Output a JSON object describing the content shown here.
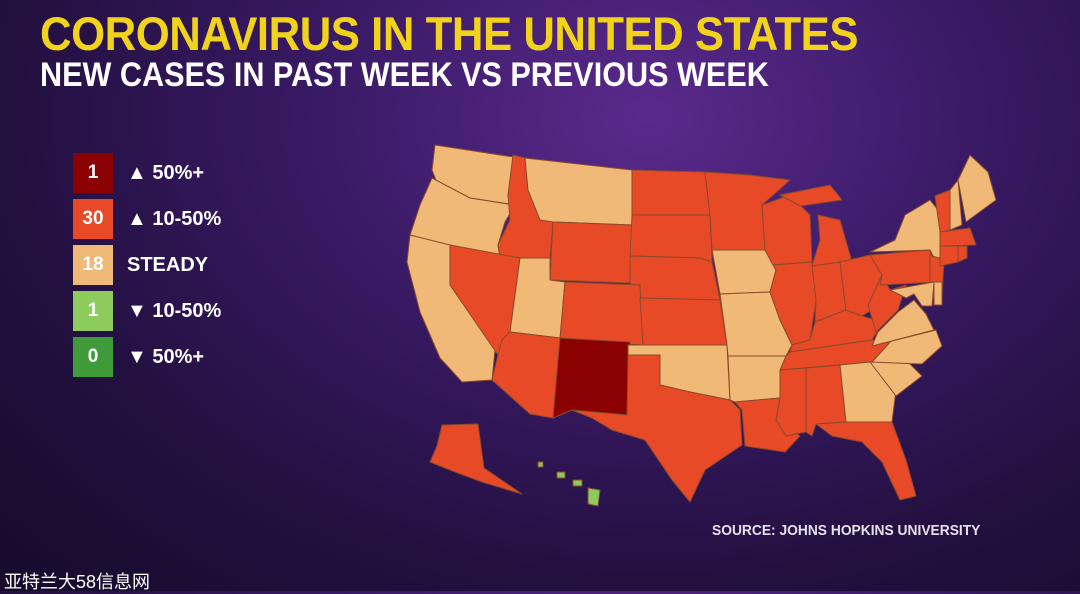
{
  "header": {
    "title": "CORONAVIRUS IN THE UNITED STATES",
    "subtitle": "NEW CASES IN PAST WEEK VS PREVIOUS WEEK"
  },
  "legend": [
    {
      "key": "up50",
      "count": "1",
      "label": "▲ 50%+",
      "color": "#8b0000"
    },
    {
      "key": "up10",
      "count": "30",
      "label": "▲ 10-50%",
      "color": "#e84a27"
    },
    {
      "key": "steady",
      "count": "18",
      "label": "STEADY",
      "color": "#f1b977"
    },
    {
      "key": "down10",
      "count": "1",
      "label": "▼ 10-50%",
      "color": "#8ccb5c"
    },
    {
      "key": "down50",
      "count": "0",
      "label": "▼ 50%+",
      "color": "#3f9a3a"
    }
  ],
  "states": {
    "NM": "up50",
    "WA": "steady",
    "OR": "steady",
    "CA": "steady",
    "MT": "steady",
    "UT": "steady",
    "IA": "steady",
    "MO": "steady",
    "OK": "steady",
    "AR": "steady",
    "GA": "steady",
    "SC": "steady",
    "NC": "steady",
    "VA": "steady",
    "NY": "steady",
    "ME": "steady",
    "NH": "steady",
    "MD": "steady",
    "DE": "steady",
    "HI": "down10",
    "ID": "up10",
    "NV": "up10",
    "AZ": "up10",
    "WY": "up10",
    "CO": "up10",
    "ND": "up10",
    "SD": "up10",
    "NE": "up10",
    "KS": "up10",
    "TX": "up10",
    "MN": "up10",
    "WI": "up10",
    "IL": "up10",
    "MI": "up10",
    "IN": "up10",
    "OH": "up10",
    "KY": "up10",
    "TN": "up10",
    "MS": "up10",
    "AL": "up10",
    "LA": "up10",
    "FL": "up10",
    "WV": "up10",
    "PA": "up10",
    "NJ": "up10",
    "VT": "up10",
    "MA": "up10",
    "CT": "up10",
    "RI": "up10",
    "AK": "up10"
  },
  "footer": {
    "source": "SOURCE: JOHNS HOPKINS UNIVERSITY",
    "watermark": "亚特兰大58信息网"
  }
}
